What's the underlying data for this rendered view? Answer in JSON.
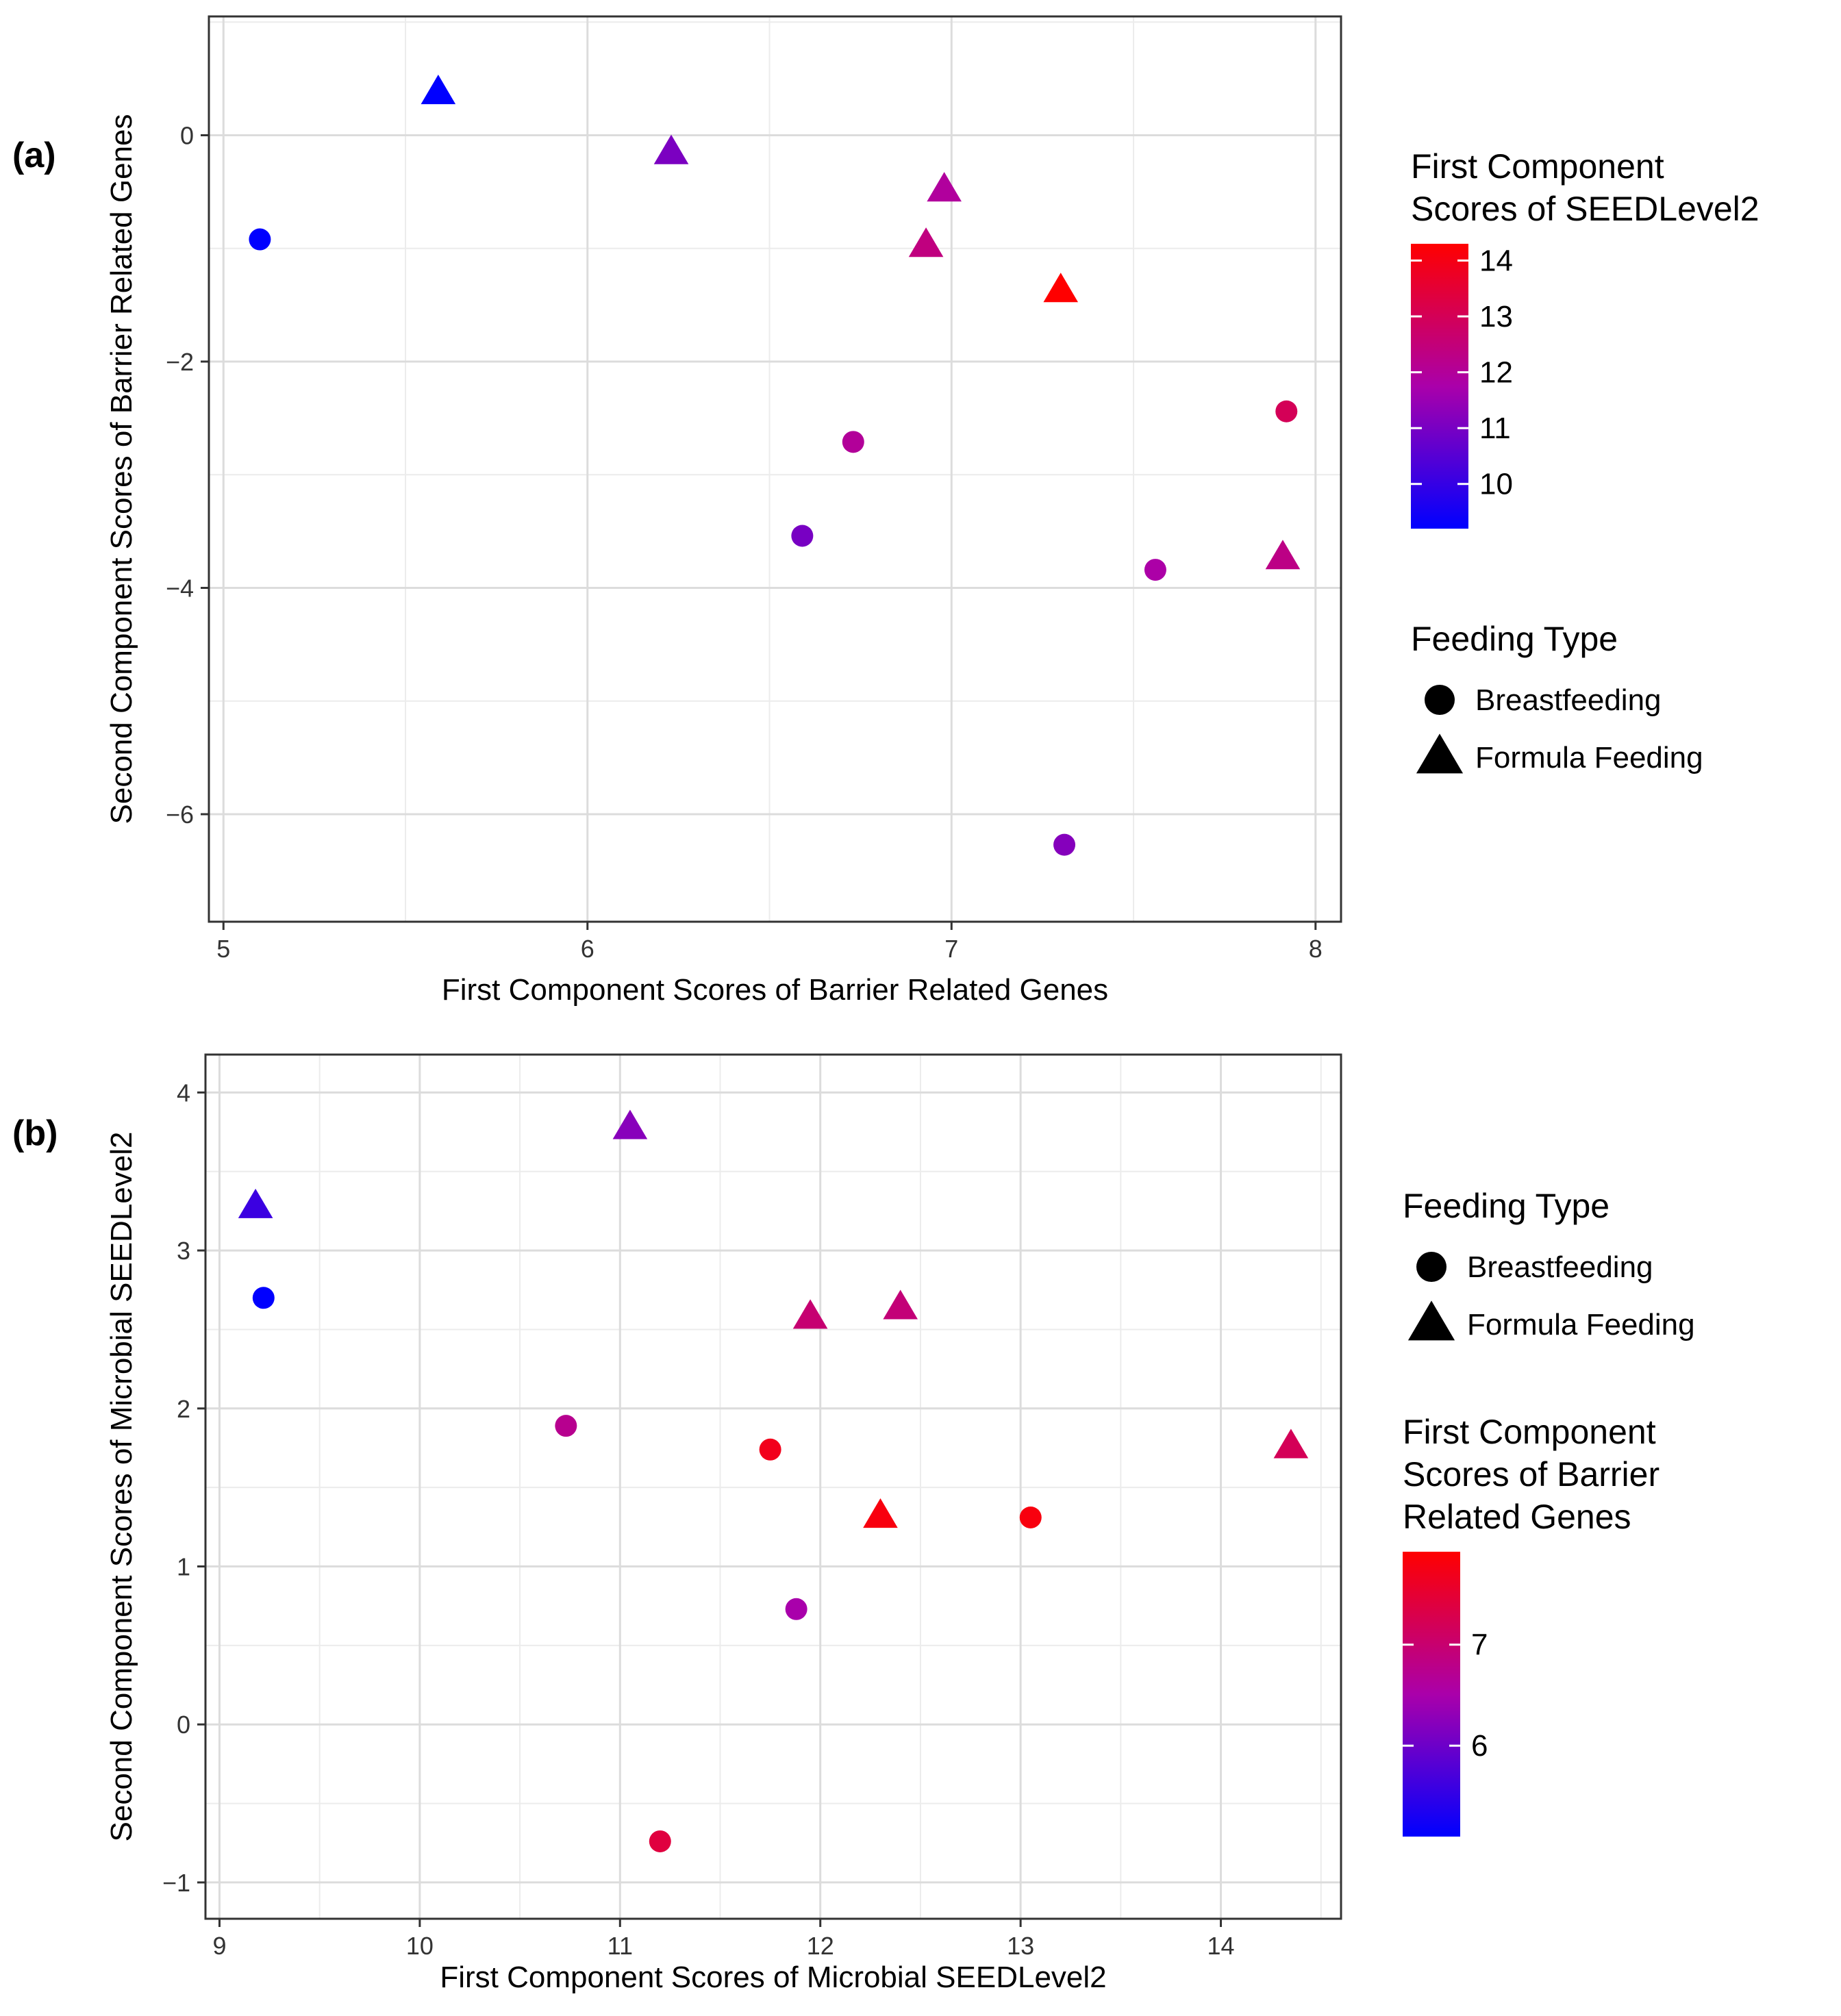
{
  "figure": {
    "panel_a_label": "(a)",
    "panel_b_label": "(b)",
    "color_low": "#0000ff",
    "color_mid": "#aa00aa",
    "color_high": "#ff0000",
    "marker_shapes": {
      "Breastfeeding": "circle",
      "Formula Feeding": "triangle"
    }
  },
  "chart_data": [
    {
      "panel": "(a)",
      "type": "scatter",
      "xlabel": "First Component Scores of Barrier Related Genes",
      "ylabel": "Second Component Scores of Barrier Related Genes",
      "xlim": [
        4.96,
        8.07
      ],
      "ylim": [
        -6.95,
        1.05
      ],
      "xticks": [
        5,
        6,
        7,
        8
      ],
      "yticks": [
        0,
        -2,
        -4,
        -6
      ],
      "grid": true,
      "legend_order": [
        "color",
        "shape"
      ],
      "color_legend": {
        "title": "First Component Scores of SEEDLevel2",
        "title_lines": [
          "First Component",
          "Scores of SEEDLevel2"
        ],
        "min": 9.2,
        "max": 14.3,
        "ticks": [
          14,
          13,
          12,
          11,
          10
        ]
      },
      "shape_legend": {
        "title": "Feeding Type",
        "entries": [
          "Breastfeeding",
          "Formula Feeding"
        ]
      },
      "points": [
        {
          "x": 5.59,
          "y": 0.38,
          "shape": "Formula Feeding",
          "color_value": 9.2
        },
        {
          "x": 6.23,
          "y": -0.15,
          "shape": "Formula Feeding",
          "color_value": 11.05
        },
        {
          "x": 6.98,
          "y": -0.48,
          "shape": "Formula Feeding",
          "color_value": 11.95
        },
        {
          "x": 6.93,
          "y": -0.97,
          "shape": "Formula Feeding",
          "color_value": 12.4
        },
        {
          "x": 7.3,
          "y": -1.37,
          "shape": "Formula Feeding",
          "color_value": 14.3
        },
        {
          "x": 7.91,
          "y": -3.73,
          "shape": "Formula Feeding",
          "color_value": 12.3
        },
        {
          "x": 5.1,
          "y": -0.92,
          "shape": "Breastfeeding",
          "color_value": 9.2
        },
        {
          "x": 6.73,
          "y": -2.71,
          "shape": "Breastfeeding",
          "color_value": 12.0
        },
        {
          "x": 6.59,
          "y": -3.54,
          "shape": "Breastfeeding",
          "color_value": 11.0
        },
        {
          "x": 7.92,
          "y": -2.44,
          "shape": "Breastfeeding",
          "color_value": 13.0
        },
        {
          "x": 7.56,
          "y": -3.84,
          "shape": "Breastfeeding",
          "color_value": 11.8
        },
        {
          "x": 7.31,
          "y": -6.27,
          "shape": "Breastfeeding",
          "color_value": 11.2
        }
      ]
    },
    {
      "panel": "(b)",
      "type": "scatter",
      "xlabel": "First Component Scores of Microbial SEEDLevel2",
      "ylabel": "Second Component Scores of Microbial SEEDLevel2",
      "xlim": [
        8.93,
        14.6
      ],
      "ylim": [
        -1.23,
        4.24
      ],
      "xticks": [
        9,
        10,
        11,
        12,
        13,
        14
      ],
      "yticks": [
        4,
        3,
        2,
        1,
        0,
        -1
      ],
      "grid": true,
      "legend_order": [
        "shape",
        "color"
      ],
      "color_legend": {
        "title": "First Component Scores of Barrier Related Genes",
        "title_lines": [
          "First Component",
          "Scores of Barrier",
          "Related Genes"
        ],
        "min": 5.1,
        "max": 7.92,
        "ticks": [
          7,
          6
        ]
      },
      "shape_legend": {
        "title": "Feeding Type",
        "entries": [
          "Breastfeeding",
          "Formula Feeding"
        ]
      },
      "points": [
        {
          "x": 9.18,
          "y": 3.28,
          "shape": "Formula Feeding",
          "color_value": 5.59
        },
        {
          "x": 11.05,
          "y": 3.78,
          "shape": "Formula Feeding",
          "color_value": 6.23
        },
        {
          "x": 11.95,
          "y": 2.58,
          "shape": "Formula Feeding",
          "color_value": 6.98
        },
        {
          "x": 12.4,
          "y": 2.64,
          "shape": "Formula Feeding",
          "color_value": 6.93
        },
        {
          "x": 12.3,
          "y": 1.32,
          "shape": "Formula Feeding",
          "color_value": 7.8
        },
        {
          "x": 14.35,
          "y": 1.76,
          "shape": "Formula Feeding",
          "color_value": 7.2
        },
        {
          "x": 9.22,
          "y": 2.7,
          "shape": "Breastfeeding",
          "color_value": 5.1
        },
        {
          "x": 10.73,
          "y": 1.89,
          "shape": "Breastfeeding",
          "color_value": 6.73
        },
        {
          "x": 11.75,
          "y": 1.74,
          "shape": "Breastfeeding",
          "color_value": 7.7
        },
        {
          "x": 13.05,
          "y": 1.31,
          "shape": "Breastfeeding",
          "color_value": 7.8
        },
        {
          "x": 11.88,
          "y": 0.73,
          "shape": "Breastfeeding",
          "color_value": 6.5
        },
        {
          "x": 11.2,
          "y": -0.74,
          "shape": "Breastfeeding",
          "color_value": 7.4
        }
      ]
    }
  ]
}
